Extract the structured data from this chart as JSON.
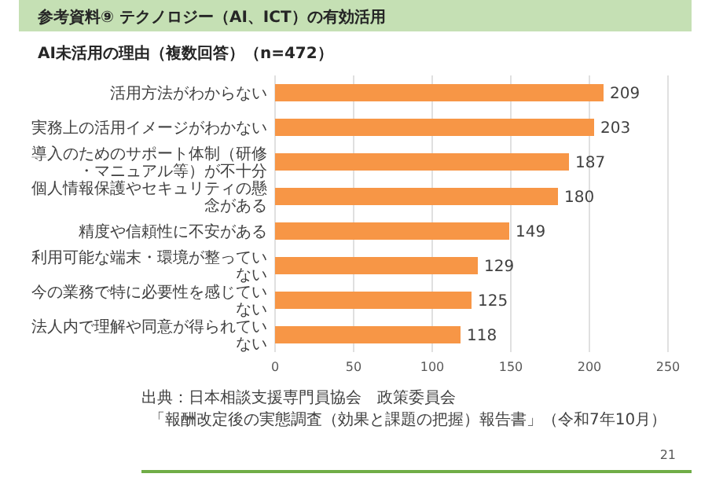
{
  "chart_data": {
    "type": "bar",
    "orientation": "horizontal",
    "title": "参考資料⑨ テクノロジー（AI、ICT）の有効活用",
    "subtitle": "AI未活用の理由（複数回答）（n=472）",
    "categories": [
      "活用方法がわからない",
      "実務上の活用イメージがわかない",
      "導入のためのサポート体制（研修・マニュアル等）が不十分",
      "個人情報保護やセキュリティの懸念がある",
      "精度や信頼性に不安がある",
      "利用可能な端末・環境が整っていない",
      "今の業務で特に必要性を感じていない",
      "法人内で理解や同意が得られていない"
    ],
    "values": [
      209,
      203,
      187,
      180,
      149,
      129,
      125,
      118
    ],
    "color": "#f79646",
    "xlim": [
      0,
      250
    ],
    "xticks": [
      0,
      50,
      100,
      150,
      200,
      250
    ],
    "grid": "x",
    "data_labels": true,
    "annotations": [
      "出典：日本相談支援専門員協会　政策委員会",
      "「報酬改定後の実態調査（効果と課題の把握）報告書」（令和7年10月）",
      "21"
    ]
  }
}
